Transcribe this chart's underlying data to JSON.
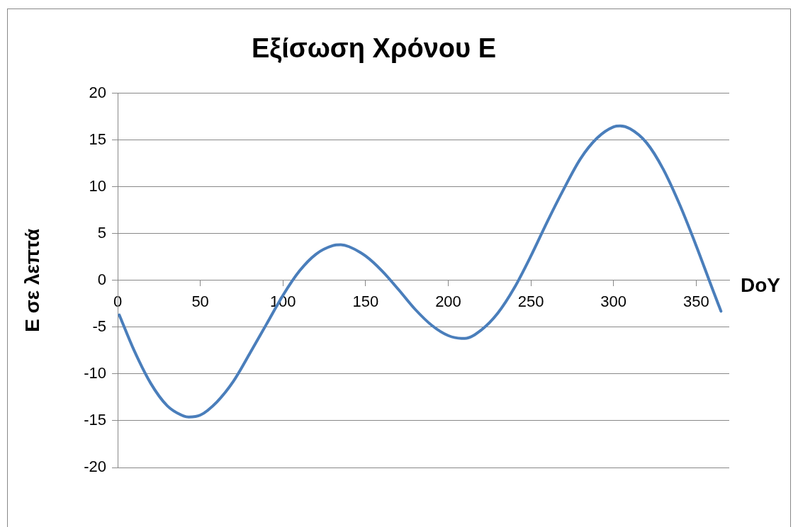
{
  "chart_data": {
    "type": "line",
    "title": "Εξίσωση Χρόνου Ε",
    "xlabel": "DoY",
    "ylabel": "Ε σε λεπτά",
    "x": [
      1,
      10,
      20,
      30,
      40,
      43,
      50,
      60,
      70,
      80,
      90,
      100,
      110,
      120,
      130,
      135,
      140,
      150,
      160,
      170,
      180,
      190,
      200,
      208,
      210,
      220,
      230,
      240,
      250,
      260,
      270,
      280,
      290,
      300,
      304,
      310,
      320,
      330,
      340,
      350,
      360,
      365
    ],
    "series": [
      {
        "color": "#4a7ebb",
        "values": [
          -3.7,
          -7.5,
          -11.0,
          -13.4,
          -14.5,
          -14.6,
          -14.4,
          -13.0,
          -10.8,
          -7.8,
          -4.7,
          -1.6,
          1.0,
          2.8,
          3.7,
          3.8,
          3.6,
          2.6,
          1.0,
          -1.0,
          -3.1,
          -4.8,
          -5.9,
          -6.2,
          -6.2,
          -5.3,
          -3.5,
          -0.8,
          2.6,
          6.3,
          9.8,
          13.0,
          15.2,
          16.4,
          16.5,
          16.2,
          14.7,
          11.9,
          8.1,
          3.7,
          -1.0,
          -3.3
        ]
      }
    ],
    "xlim": [
      0,
      370
    ],
    "xticks": [
      0,
      50,
      100,
      150,
      200,
      250,
      300,
      350
    ],
    "ylim": [
      -20,
      20
    ],
    "yticks": [
      -20,
      -15,
      -10,
      -5,
      0,
      5,
      10,
      15,
      20
    ],
    "grid": "y",
    "legend": false,
    "marker": "none",
    "line_style": "solid"
  }
}
